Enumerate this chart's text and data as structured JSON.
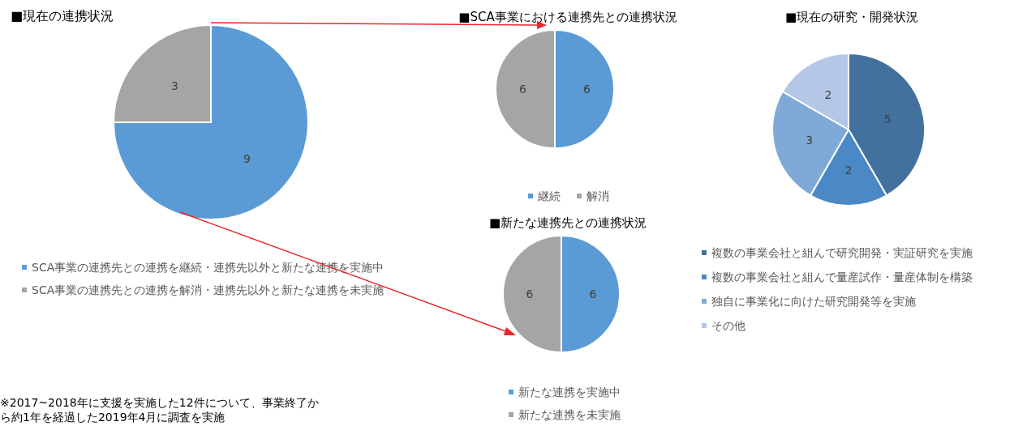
{
  "chart_data": [
    {
      "type": "pie",
      "title": "■現在の連携状況",
      "categories": [
        "SCA事業の連携先との連携を継続・連携先以外と新たな連携を実施中",
        "SCA事業の連携先との連携を解消・連携先以外と新たな連携を未実施"
      ],
      "values": [
        9,
        3
      ],
      "colors": [
        "#5b9bd5",
        "#a5a5a5"
      ],
      "data_labels": true,
      "legend": "bottom left",
      "annotations": [
        "※2017~2018年に支援を実施した12件について、事業終了から約1年を経過した2019年4月に調査を実施"
      ]
    },
    {
      "type": "pie",
      "title": "■SCA事業における連携先との連携状況",
      "categories": [
        "継続",
        "解消"
      ],
      "values": [
        6,
        6
      ],
      "colors": [
        "#5b9bd5",
        "#a5a5a5"
      ],
      "data_labels": true,
      "legend": "bottom"
    },
    {
      "type": "pie",
      "title": "■新たな連携先との連携状況",
      "categories": [
        "新たな連携を実施中",
        "新たな連携を未実施"
      ],
      "values": [
        6,
        6
      ],
      "colors": [
        "#5b9bd5",
        "#a5a5a5"
      ],
      "data_labels": true,
      "legend": "bottom"
    },
    {
      "type": "pie",
      "title": "■現在の研究・開発状況",
      "categories": [
        "複数の事業会社と組んで研究開発・実証研究を実施",
        "複数の事業会社と組んで量産試作・量産体制を構築",
        "独自に事業化に向けた研究開発等を実施",
        "その他"
      ],
      "values": [
        5,
        2,
        3,
        2
      ],
      "colors": [
        "#41719c",
        "#4a88c6",
        "#7faad8",
        "#b4c7e7"
      ],
      "data_labels": true,
      "legend": "bottom"
    }
  ]
}
